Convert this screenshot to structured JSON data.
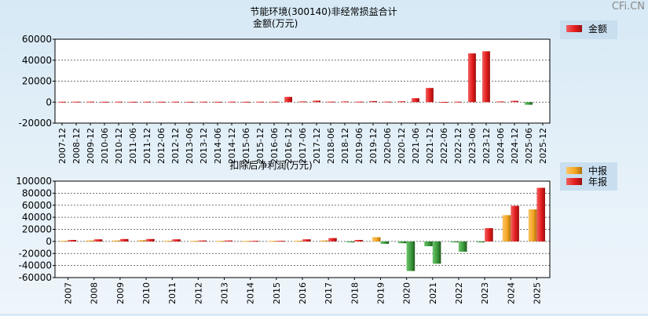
{
  "watermark": "CFi.CN",
  "colors": {
    "red": "#e41c1c",
    "red_dark": "#8a1010",
    "orange": "#f5a623",
    "orange_dark": "#a8690a",
    "green": "#3c9a3c",
    "green_dark": "#1f5a1f"
  },
  "chart_data": [
    {
      "type": "bar",
      "title": "节能环境(300140)非经常损益合计",
      "subtitle": "金额(万元)",
      "ylim": [
        -20000,
        60000
      ],
      "yticks": [
        -20000,
        0,
        20000,
        40000,
        60000
      ],
      "ytick_labels": [
        "-20000",
        "0",
        "20000",
        "40000",
        "60000"
      ],
      "grid": true,
      "legend_position": "top-right",
      "categories": [
        "2007-12",
        "2008-12",
        "2009-12",
        "2010-06",
        "2010-12",
        "2011-06",
        "2011-12",
        "2012-06",
        "2012-12",
        "2013-06",
        "2013-12",
        "2014-06",
        "2014-12",
        "2015-06",
        "2015-12",
        "2016-06",
        "2016-12",
        "2017-06",
        "2017-12",
        "2018-06",
        "2018-12",
        "2019-06",
        "2019-12",
        "2020-06",
        "2020-12",
        "2021-06",
        "2021-12",
        "2022-06",
        "2022-12",
        "2023-06",
        "2023-12",
        "2024-06",
        "2024-12",
        "2025-06",
        "2025-12"
      ],
      "series": [
        {
          "name": "金额",
          "values": [
            300,
            400,
            500,
            300,
            400,
            300,
            400,
            300,
            400,
            300,
            400,
            300,
            400,
            300,
            400,
            400,
            5000,
            600,
            1400,
            500,
            600,
            500,
            1000,
            500,
            800,
            3800,
            13500,
            200,
            400,
            46500,
            48500,
            600,
            1200,
            -2500,
            0
          ]
        }
      ]
    },
    {
      "type": "bar",
      "title": "扣除后净利润(万元)",
      "ylim": [
        -60000,
        100000
      ],
      "yticks": [
        -60000,
        -40000,
        -20000,
        0,
        20000,
        40000,
        60000,
        80000,
        100000
      ],
      "ytick_labels": [
        "-60000",
        "-40000",
        "-20000",
        "0",
        "20000",
        "40000",
        "60000",
        "80000",
        "100000"
      ],
      "grid": true,
      "legend_position": "top-right",
      "categories": [
        "2007",
        "2008",
        "2009",
        "2010",
        "2011",
        "2012",
        "2013",
        "2014",
        "2015",
        "2016",
        "2017",
        "2018",
        "2019",
        "2020",
        "2021",
        "2022",
        "2023",
        "2024",
        "2025"
      ],
      "series": [
        {
          "name": "中报",
          "values": [
            1000,
            1500,
            1500,
            2000,
            1000,
            800,
            700,
            600,
            800,
            1000,
            1500,
            -1500,
            7000,
            -3000,
            -8000,
            -1500,
            -1500,
            43500,
            53000
          ]
        },
        {
          "name": "年报",
          "values": [
            2500,
            3500,
            4000,
            4000,
            3500,
            1500,
            1500,
            1000,
            1000,
            3500,
            5500,
            2500,
            -4000,
            -49000,
            -37000,
            -17000,
            22000,
            59000,
            89000
          ]
        }
      ]
    }
  ]
}
